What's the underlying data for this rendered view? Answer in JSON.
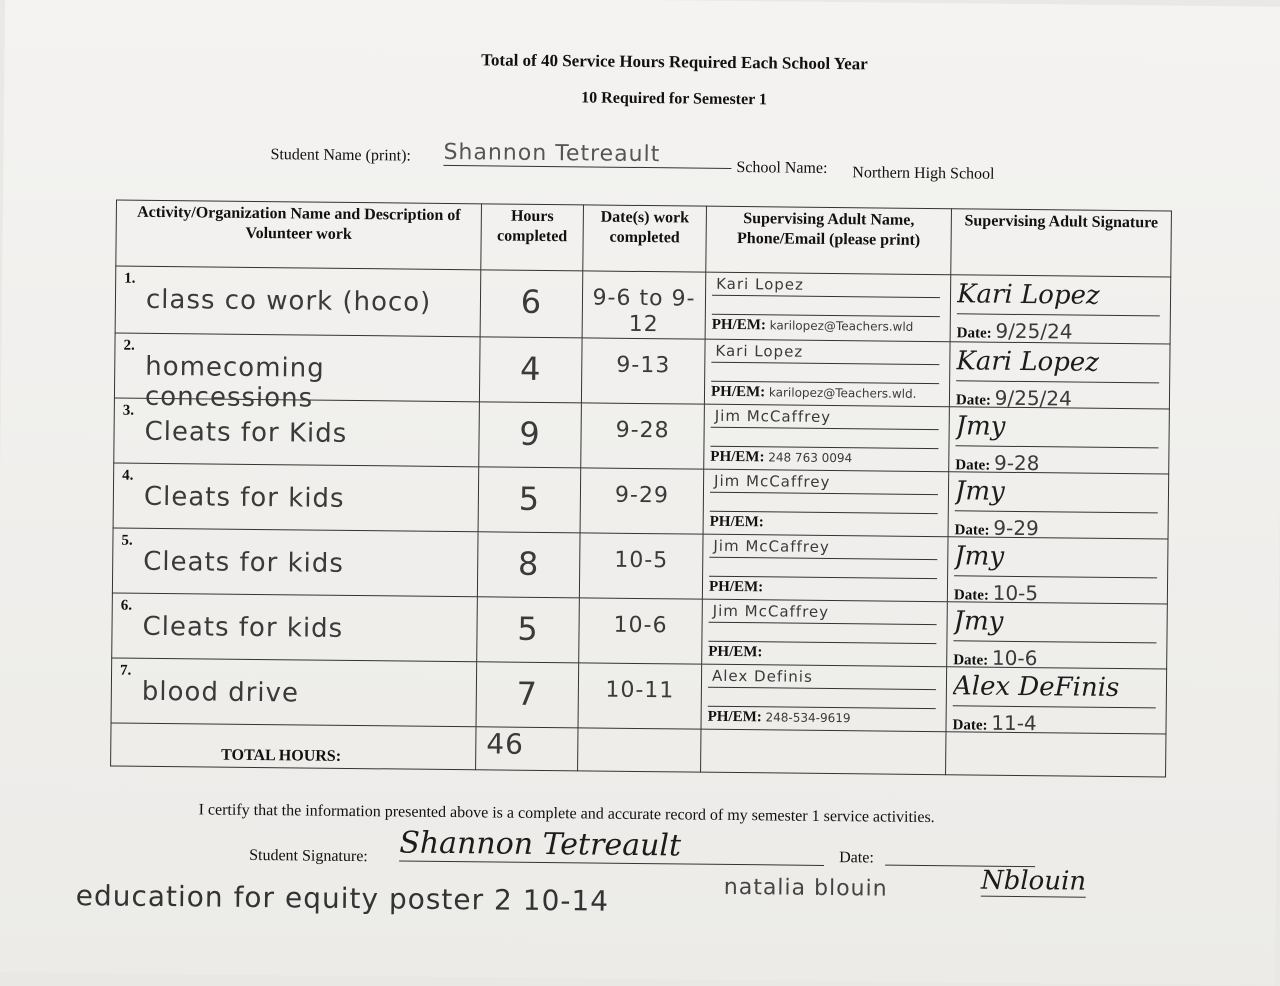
{
  "header": {
    "title": "Total of 40 Service Hours Required Each School Year",
    "subtitle": "10 Required for Semester 1",
    "student_name_label": "Student Name (print):",
    "student_name": "Shannon Tetreault",
    "school_name_label": "School Name:",
    "school_name": "Northern High School"
  },
  "table": {
    "headers": [
      "Activity/Organization Name and Description of Volunteer work",
      "Hours completed",
      "Date(s) work completed",
      "Supervising Adult Name, Phone/Email (please print)",
      "Supervising Adult Signature"
    ],
    "phem_label": "PH/EM:",
    "date_label": "Date:",
    "rows": [
      {
        "num": "1.",
        "activity": "class co work (hoco)",
        "hours": "6",
        "dates": "9-6 to 9-12",
        "supervisor": "Kari Lopez",
        "contact": "karilopez@Teachers.wld",
        "signature": "Kari Lopez",
        "sig_date": "9/25/24"
      },
      {
        "num": "2.",
        "activity": "homecoming concessions",
        "hours": "4",
        "dates": "9-13",
        "supervisor": "Kari Lopez",
        "contact": "karilopez@Teachers.wld.",
        "signature": "Kari Lopez",
        "sig_date": "9/25/24"
      },
      {
        "num": "3.",
        "activity": "Cleats for Kids",
        "hours": "9",
        "dates": "9-28",
        "supervisor": "Jim McCaffrey",
        "contact": "248 763 0094",
        "signature": "Jmy",
        "sig_date": "9-28"
      },
      {
        "num": "4.",
        "activity": "Cleats for kids",
        "hours": "5",
        "dates": "9-29",
        "supervisor": "Jim McCaffrey",
        "contact": "",
        "signature": "Jmy",
        "sig_date": "9-29"
      },
      {
        "num": "5.",
        "activity": "Cleats for kids",
        "hours": "8",
        "dates": "10-5",
        "supervisor": "Jim McCaffrey",
        "contact": "",
        "signature": "Jmy",
        "sig_date": "10-5"
      },
      {
        "num": "6.",
        "activity": "Cleats for kids",
        "hours": "5",
        "dates": "10-6",
        "supervisor": "Jim McCaffrey",
        "contact": "",
        "signature": "Jmy",
        "sig_date": "10-6"
      },
      {
        "num": "7.",
        "activity": "blood drive",
        "hours": "7",
        "dates": "10-11",
        "supervisor": "Alex Definis",
        "contact": "248-534-9619",
        "signature": "Alex DeFinis",
        "sig_date": "11-4"
      }
    ],
    "total_label": "TOTAL HOURS:",
    "total_hours": "46"
  },
  "footer": {
    "certify": "I certify that the information presented above is a complete and accurate record of my semester 1 service activities.",
    "student_signature_label": "Student Signature:",
    "student_signature": "Shannon Tetreault",
    "date_label": "Date:",
    "note": "education for equity poster 2 10-14",
    "note_supervisor": "natalia blouin",
    "note_signature": "Nblouin"
  }
}
